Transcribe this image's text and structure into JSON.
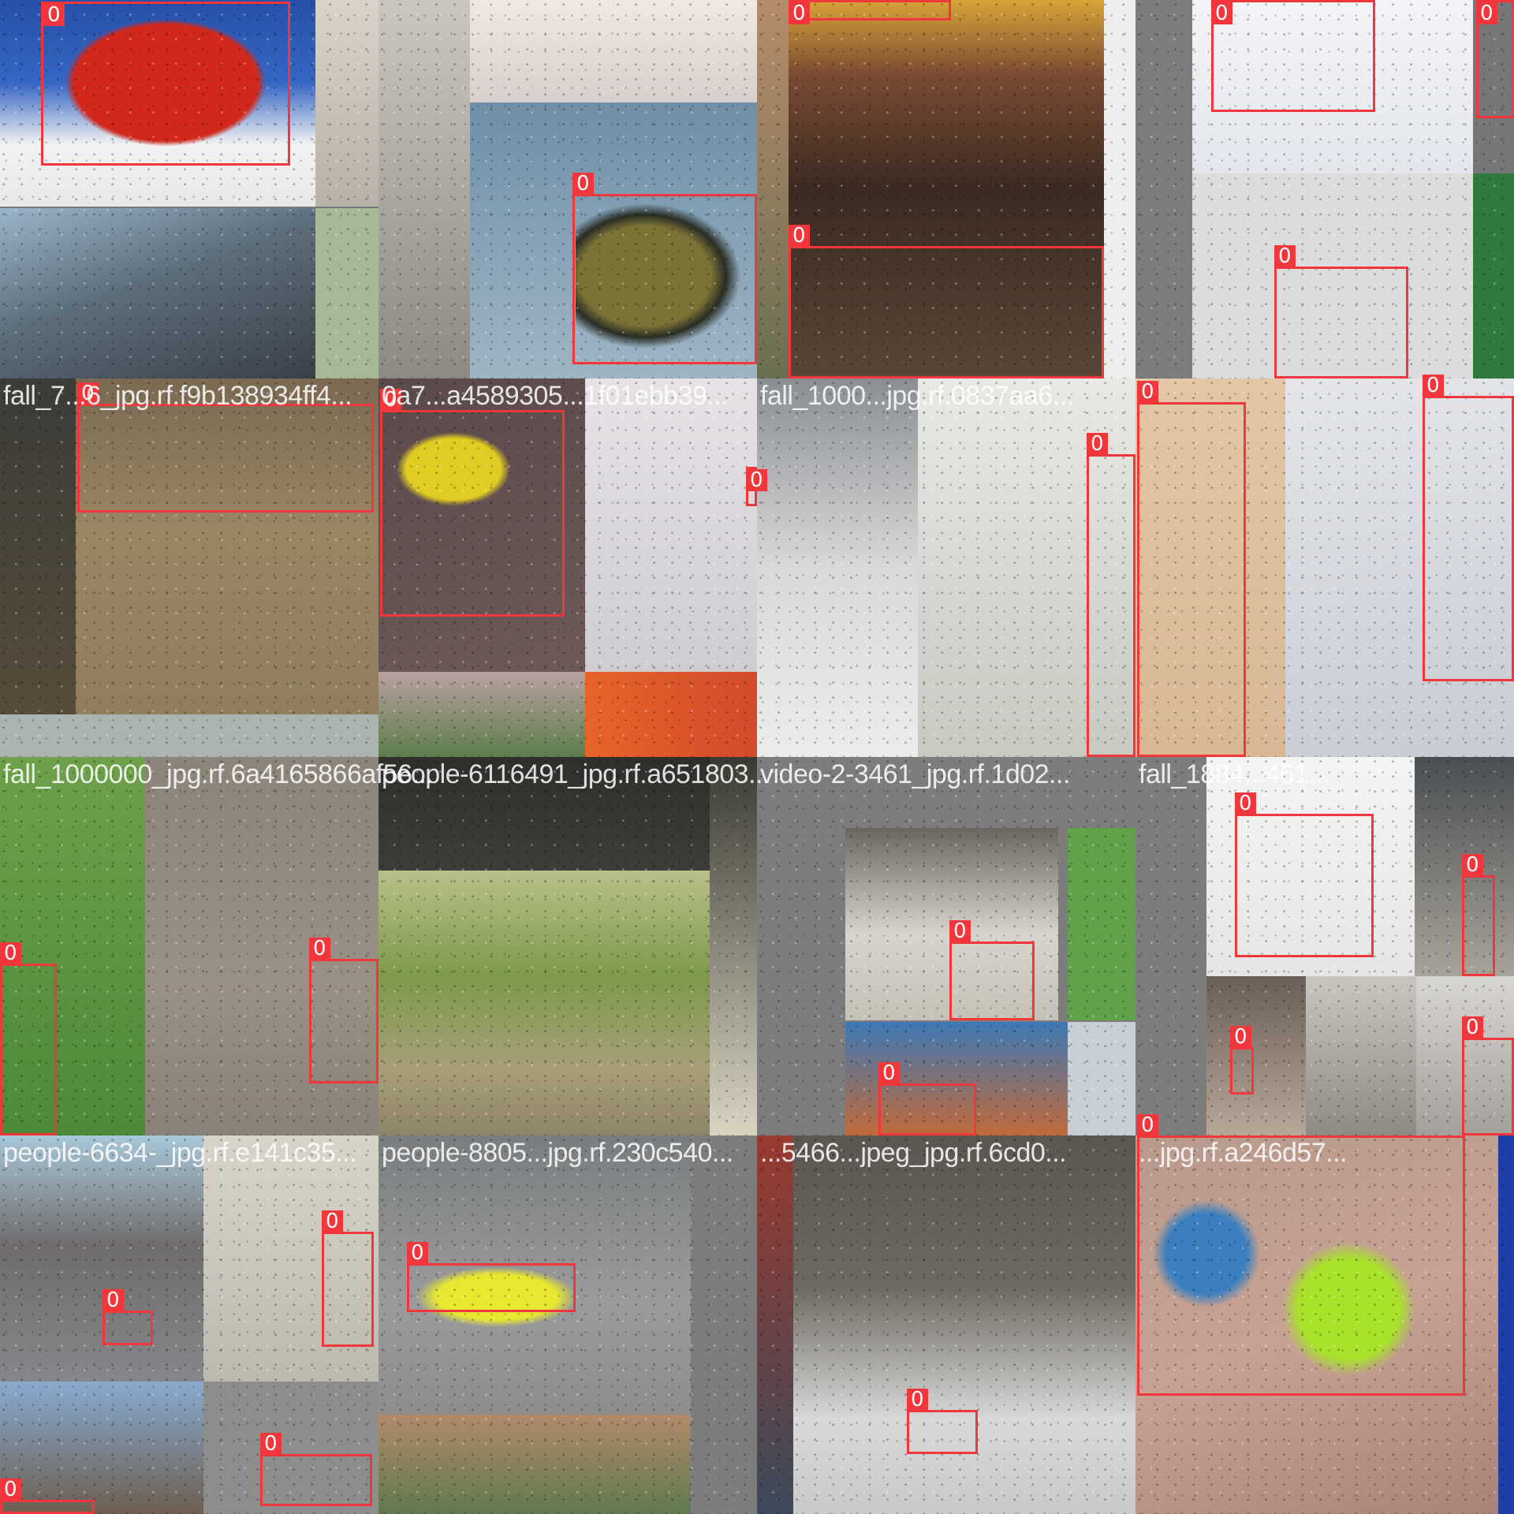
{
  "grid": {
    "cells": [
      {
        "caption": ""
      },
      {
        "caption": ""
      },
      {
        "caption": ""
      },
      {
        "caption": ""
      },
      {
        "caption": "fall_7...6_jpg.rf.f9b138934ff4..."
      },
      {
        "caption": "0a7...a4589305...1f01ebb39..."
      },
      {
        "caption": "fall_1000...jpg.rf.0837aa6..."
      },
      {
        "caption": ""
      },
      {
        "caption": "fall_1000000_jpg.rf.6a4165866af56..."
      },
      {
        "caption": "people-6116491_jpg.rf.a651803..."
      },
      {
        "caption": "video-2-3461_jpg.rf.1d02..."
      },
      {
        "caption": "fall_1884...461..."
      },
      {
        "caption": "people-6634-_jpg.rf.e141c35..."
      },
      {
        "caption": "people-8805...jpg.rf.230c540..."
      },
      {
        "caption": "...5466...jpeg_jpg.rf.6cd0..."
      },
      {
        "caption": "...jpg.rf.a246d57..."
      }
    ]
  },
  "detection_label": "0",
  "box_color": "#f2373c"
}
